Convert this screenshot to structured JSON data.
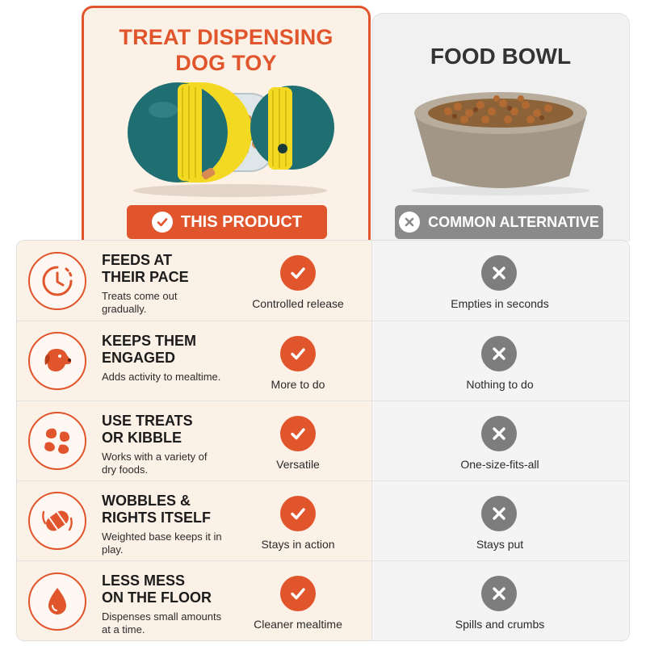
{
  "product": {
    "title_line1": "TREAT DISPENSING",
    "title_line2": "DOG TOY",
    "badge": "THIS PRODUCT"
  },
  "alternative": {
    "title": "FOOD BOWL",
    "badge": "COMMON ALTERNATIVE"
  },
  "colors": {
    "accent": "#e0552c",
    "accent_bg": "#fcf1e6",
    "neutral": "#7d7d7d",
    "neutral_bg": "#f4f4f4"
  },
  "rows": [
    {
      "icon": "clock-icon",
      "title_line1": "FEEDS AT",
      "title_line2": "THEIR PACE",
      "desc": "Treats come out gradually.",
      "product_value": "Controlled release",
      "alt_value": "Empties in seconds"
    },
    {
      "icon": "dog-head-icon",
      "title_line1": "KEEPS THEM",
      "title_line2": "ENGAGED",
      "desc": "Adds activity to mealtime.",
      "product_value": "More to do",
      "alt_value": "Nothing to do"
    },
    {
      "icon": "kibble-icon",
      "title_line1": "USE TREATS",
      "title_line2": "OR KIBBLE",
      "desc": "Works with a variety of dry foods.",
      "product_value": "Versatile",
      "alt_value": "One-size-fits-all"
    },
    {
      "icon": "wobble-toy-icon",
      "title_line1": "WOBBLES &",
      "title_line2": "RIGHTS ITSELF",
      "desc": "Weighted base keeps it in play.",
      "product_value": "Stays in action",
      "alt_value": "Stays put"
    },
    {
      "icon": "droplet-icon",
      "title_line1": "LESS MESS",
      "title_line2": "ON THE FLOOR",
      "desc": "Dispenses small amounts at a time.",
      "product_value": "Cleaner mealtime",
      "alt_value": "Spills and crumbs"
    }
  ]
}
